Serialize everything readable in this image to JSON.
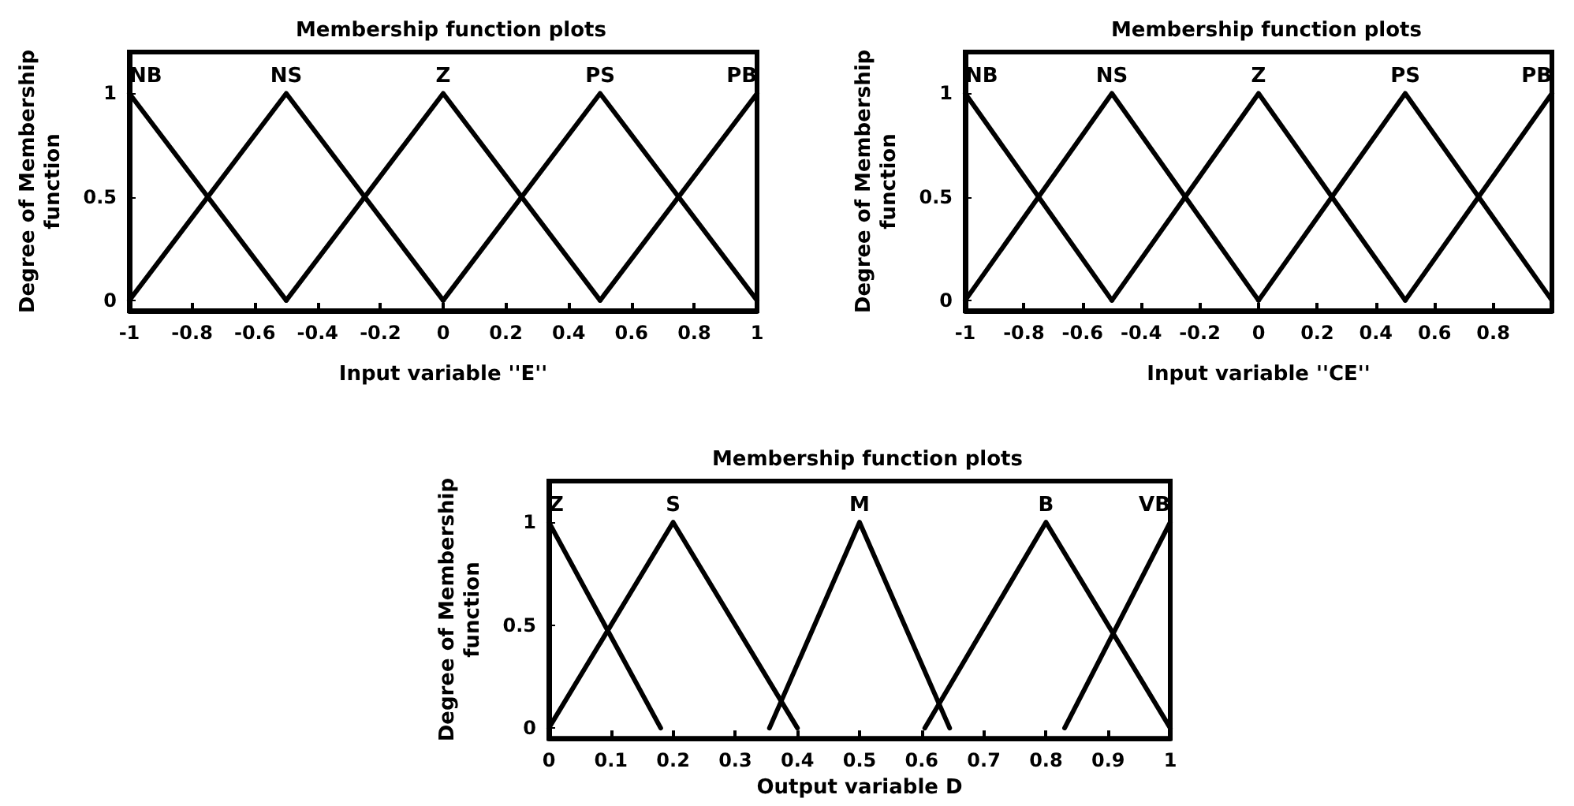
{
  "chart_data": [
    {
      "type": "line",
      "title": "Membership function plots",
      "xlabel": "Input variable ''E''",
      "ylabel": "Degree of Membership function",
      "xlim": [
        -1,
        1
      ],
      "ylim": [
        -0.05,
        1.2
      ],
      "xticks": [
        -1,
        -0.8,
        -0.6,
        -0.4,
        -0.2,
        0,
        0.2,
        0.4,
        0.6,
        0.8,
        1
      ],
      "yticks": [
        0,
        0.5,
        1
      ],
      "grid": false,
      "legend": false,
      "marker": "none",
      "line_style": "solid",
      "series": [
        {
          "name": "NB",
          "color": "#000000",
          "x": [
            -1,
            -0.5
          ],
          "values": [
            1,
            0
          ]
        },
        {
          "name": "NS",
          "color": "#000000",
          "x": [
            -1,
            -0.5,
            0
          ],
          "values": [
            0,
            1,
            0
          ]
        },
        {
          "name": "Z",
          "color": "#000000",
          "x": [
            -0.5,
            0,
            0.5
          ],
          "values": [
            0,
            1,
            0
          ]
        },
        {
          "name": "PS",
          "color": "#000000",
          "x": [
            0,
            0.5,
            1
          ],
          "values": [
            0,
            1,
            0
          ]
        },
        {
          "name": "PB",
          "color": "#000000",
          "x": [
            0.5,
            1
          ],
          "values": [
            0,
            1
          ]
        }
      ]
    },
    {
      "type": "line",
      "title": "Membership function plots",
      "xlabel": "Input variable ''CE''",
      "ylabel": "Degree of Membership function",
      "xlim": [
        -1,
        1
      ],
      "ylim": [
        -0.05,
        1.2
      ],
      "xticks": [
        -1,
        -0.8,
        -0.6,
        -0.4,
        -0.2,
        0,
        0.2,
        0.4,
        0.6,
        0.8,
        {
          "value": 1,
          "label": null
        }
      ],
      "yticks": [
        0,
        0.5,
        1
      ],
      "grid": false,
      "legend": false,
      "marker": "none",
      "line_style": "solid",
      "series": [
        {
          "name": "NB",
          "color": "#000000",
          "x": [
            -1,
            -0.5
          ],
          "values": [
            1,
            0
          ]
        },
        {
          "name": "NS",
          "color": "#000000",
          "x": [
            -1,
            -0.5,
            0
          ],
          "values": [
            0,
            1,
            0
          ]
        },
        {
          "name": "Z",
          "color": "#000000",
          "x": [
            -0.5,
            0,
            0.5
          ],
          "values": [
            0,
            1,
            0
          ]
        },
        {
          "name": "PS",
          "color": "#000000",
          "x": [
            0,
            0.5,
            1
          ],
          "values": [
            0,
            1,
            0
          ]
        },
        {
          "name": "PB",
          "color": "#000000",
          "x": [
            0.5,
            1
          ],
          "values": [
            0,
            1
          ]
        }
      ]
    },
    {
      "type": "line",
      "title": "Membership function plots",
      "xlabel": "Output variable D",
      "ylabel": "Degree of Membership function",
      "xlim": [
        0,
        1
      ],
      "ylim": [
        -0.05,
        1.2
      ],
      "xticks": [
        0,
        0.1,
        0.2,
        0.3,
        0.4,
        0.5,
        0.6,
        0.7,
        0.8,
        0.9,
        1
      ],
      "yticks": [
        0,
        0.5,
        1
      ],
      "grid": false,
      "legend": false,
      "marker": "none",
      "line_style": "solid",
      "series": [
        {
          "name": "Z",
          "color": "#000000",
          "x": [
            0,
            0.18
          ],
          "values": [
            1,
            0
          ]
        },
        {
          "name": "S",
          "color": "#000000",
          "x": [
            0,
            0.2,
            0.4
          ],
          "values": [
            0,
            1,
            0
          ]
        },
        {
          "name": "M",
          "color": "#000000",
          "x": [
            0.355,
            0.5,
            0.645
          ],
          "values": [
            0,
            1,
            0
          ]
        },
        {
          "name": "B",
          "color": "#000000",
          "x": [
            0.605,
            0.8,
            1
          ],
          "values": [
            0,
            1,
            0
          ]
        },
        {
          "name": "VB",
          "color": "#000000",
          "x": [
            0.83,
            1
          ],
          "values": [
            0,
            1
          ]
        }
      ]
    }
  ]
}
